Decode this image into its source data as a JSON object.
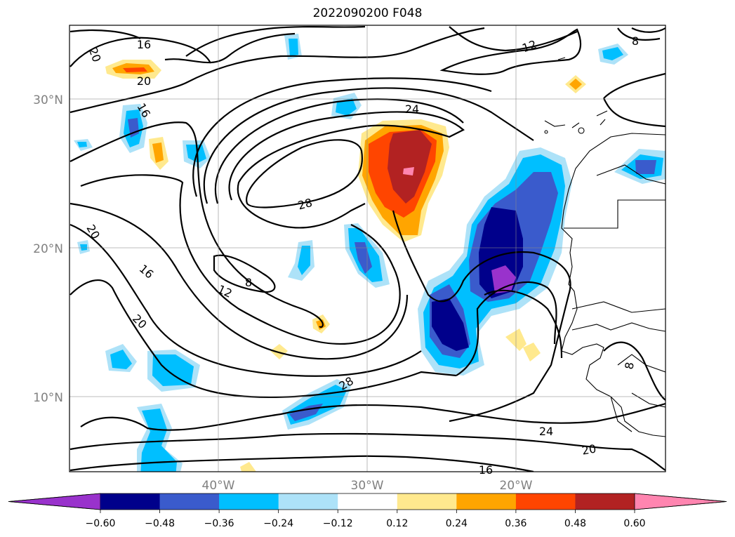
{
  "title": "2022090200 F048",
  "map": {
    "lat_labels": [
      "30°N",
      "20°N",
      "10°N"
    ],
    "lon_labels": [
      "40°W",
      "30°W",
      "20°W"
    ],
    "contour_labels": [
      "16",
      "20",
      "20",
      "16",
      "12",
      "8",
      "24",
      "28",
      "20",
      "16",
      "8",
      "12",
      "20",
      "28",
      "24",
      "20",
      "16",
      "8"
    ]
  },
  "colorbar": {
    "ticks": [
      "−0.60",
      "−0.48",
      "−0.36",
      "−0.24",
      "−0.12",
      "0.12",
      "0.24",
      "0.36",
      "0.48",
      "0.60"
    ],
    "colors": [
      "#9932cc",
      "#00008b",
      "#3a5bcc",
      "#00bfff",
      "#ade2f8",
      "#ffffff",
      "#ffe98e",
      "#ffa500",
      "#ff4500",
      "#b22222",
      "#ff85b0"
    ],
    "extend": "both"
  }
}
